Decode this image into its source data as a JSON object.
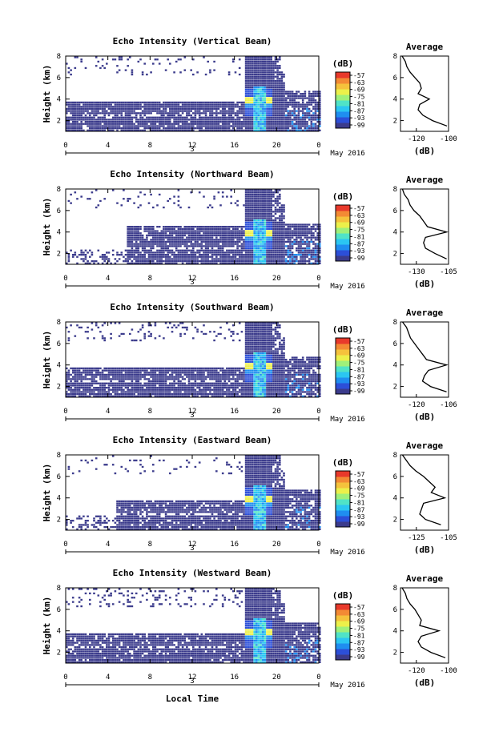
{
  "figure": {
    "xlabel": "Local Time",
    "date_label": "May 2016",
    "day_label": "3",
    "ylabel": "Height (km)",
    "avg_title": "Average",
    "unit_label": "(dB)",
    "colorbar_ticks": [
      "-57",
      "-63",
      "-69",
      "-75",
      "-81",
      "-87",
      "-93",
      "-99"
    ],
    "colormap": [
      "#3b3b8c",
      "#2c4fd8",
      "#1f8ef0",
      "#2bc6f2",
      "#50e3c7",
      "#9ff07a",
      "#ecf04a",
      "#f5c23c",
      "#f38a34",
      "#e8392b"
    ]
  },
  "chart_data": [
    {
      "type": "heatmap",
      "title": "Echo Intensity (Vertical Beam)",
      "xlabel": "",
      "ylabel": "Height (km)",
      "xlim": [
        0,
        24
      ],
      "ylim": [
        1,
        8
      ],
      "xticks": [
        "0",
        "4",
        "8",
        "12",
        "16",
        "20",
        "0"
      ],
      "yticks": [
        "2",
        "4",
        "6",
        "8"
      ],
      "zlim": [
        -99,
        -57
      ],
      "colorbar_label": "(dB)",
      "profile": {
        "title": "Average",
        "xlabel": "(dB)",
        "xlim": [
          -130,
          -100
        ],
        "xticks": [
          "-120",
          "-100"
        ],
        "yticks": [
          "2",
          "4",
          "6",
          "8"
        ],
        "height": [
          1.5,
          2,
          2.5,
          3,
          3.5,
          4,
          4.5,
          5,
          5.5,
          6,
          6.5,
          7,
          7.5,
          8
        ],
        "value": [
          -101,
          -110,
          -116,
          -119,
          -118,
          -112,
          -119,
          -117,
          -118,
          -121,
          -124,
          -126,
          -127,
          -129
        ]
      }
    },
    {
      "type": "heatmap",
      "title": "Echo Intensity (Northward Beam)",
      "xlabel": "",
      "ylabel": "Height (km)",
      "xlim": [
        0,
        24
      ],
      "ylim": [
        1,
        8
      ],
      "xticks": [
        "0",
        "4",
        "8",
        "12",
        "16",
        "20",
        "0"
      ],
      "yticks": [
        "2",
        "4",
        "6",
        "8"
      ],
      "zlim": [
        -99,
        -57
      ],
      "colorbar_label": "(dB)",
      "profile": {
        "title": "Average",
        "xlabel": "(dB)",
        "xlim": [
          -130,
          -105
        ],
        "xticks": [
          "-130",
          "-105"
        ],
        "yticks": [
          "2",
          "4",
          "6",
          "8"
        ],
        "height": [
          1.5,
          2,
          2.5,
          3,
          3.5,
          4,
          4.5,
          5,
          5.5,
          6,
          6.5,
          7,
          7.5,
          8
        ],
        "value": [
          -106,
          -112,
          -117,
          -118,
          -117,
          -106,
          -116,
          -118,
          -120,
          -123,
          -125,
          -126,
          -128,
          -129
        ]
      }
    },
    {
      "type": "heatmap",
      "title": "Echo Intensity (Southward Beam)",
      "xlabel": "",
      "ylabel": "Height (km)",
      "xlim": [
        0,
        24
      ],
      "ylim": [
        1,
        8
      ],
      "xticks": [
        "0",
        "4",
        "8",
        "12",
        "16",
        "20",
        "0"
      ],
      "yticks": [
        "2",
        "4",
        "6",
        "8"
      ],
      "zlim": [
        -99,
        -57
      ],
      "colorbar_label": "(dB)",
      "profile": {
        "title": "Average",
        "xlabel": "(dB)",
        "xlim": [
          -130,
          -106
        ],
        "xticks": [
          "-120",
          "-106"
        ],
        "yticks": [
          "2",
          "4",
          "6",
          "8"
        ],
        "height": [
          1.5,
          2,
          2.5,
          3,
          3.5,
          4,
          4.5,
          5,
          5.5,
          6,
          6.5,
          7,
          7.5,
          8
        ],
        "value": [
          -107,
          -115,
          -119,
          -118,
          -116,
          -107,
          -117,
          -119,
          -121,
          -123,
          -125,
          -126,
          -127,
          -129
        ]
      }
    },
    {
      "type": "heatmap",
      "title": "Echo Intensity (Eastward Beam)",
      "xlabel": "",
      "ylabel": "Height (km)",
      "xlim": [
        0,
        24
      ],
      "ylim": [
        1,
        8
      ],
      "xticks": [
        "0",
        "4",
        "8",
        "12",
        "16",
        "20",
        "0"
      ],
      "yticks": [
        "2",
        "4",
        "6",
        "8"
      ],
      "zlim": [
        -99,
        -57
      ],
      "colorbar_label": "(dB)",
      "profile": {
        "title": "Average",
        "xlabel": "(dB)",
        "xlim": [
          -130,
          -105
        ],
        "xticks": [
          "-125",
          "-105"
        ],
        "yticks": [
          "2",
          "4",
          "6",
          "8"
        ],
        "height": [
          1.5,
          2,
          2.5,
          3,
          3.5,
          4,
          4.5,
          5,
          5.5,
          6,
          6.5,
          7,
          7.5,
          8
        ],
        "value": [
          -109,
          -117,
          -120,
          -119,
          -118,
          -107,
          -114,
          -112,
          -115,
          -118,
          -122,
          -125,
          -127,
          -129
        ]
      }
    },
    {
      "type": "heatmap",
      "title": "Echo Intensity (Westward Beam)",
      "xlabel": "Local Time",
      "ylabel": "Height (km)",
      "xlim": [
        0,
        24
      ],
      "ylim": [
        1,
        8
      ],
      "xticks": [
        "0",
        "4",
        "8",
        "12",
        "16",
        "20",
        "0"
      ],
      "yticks": [
        "2",
        "4",
        "6",
        "8"
      ],
      "zlim": [
        -99,
        -57
      ],
      "colorbar_label": "(dB)",
      "profile": {
        "title": "Average",
        "xlabel": "(dB)",
        "xlim": [
          -130,
          -100
        ],
        "xticks": [
          "-120",
          "-100"
        ],
        "yticks": [
          "2",
          "4",
          "6",
          "8"
        ],
        "height": [
          1.5,
          2,
          2.5,
          3,
          3.5,
          4,
          4.5,
          5,
          5.5,
          6,
          6.5,
          7,
          7.5,
          8
        ],
        "value": [
          -102,
          -111,
          -117,
          -119,
          -117,
          -106,
          -118,
          -117,
          -119,
          -121,
          -124,
          -126,
          -127,
          -129
        ]
      }
    }
  ]
}
